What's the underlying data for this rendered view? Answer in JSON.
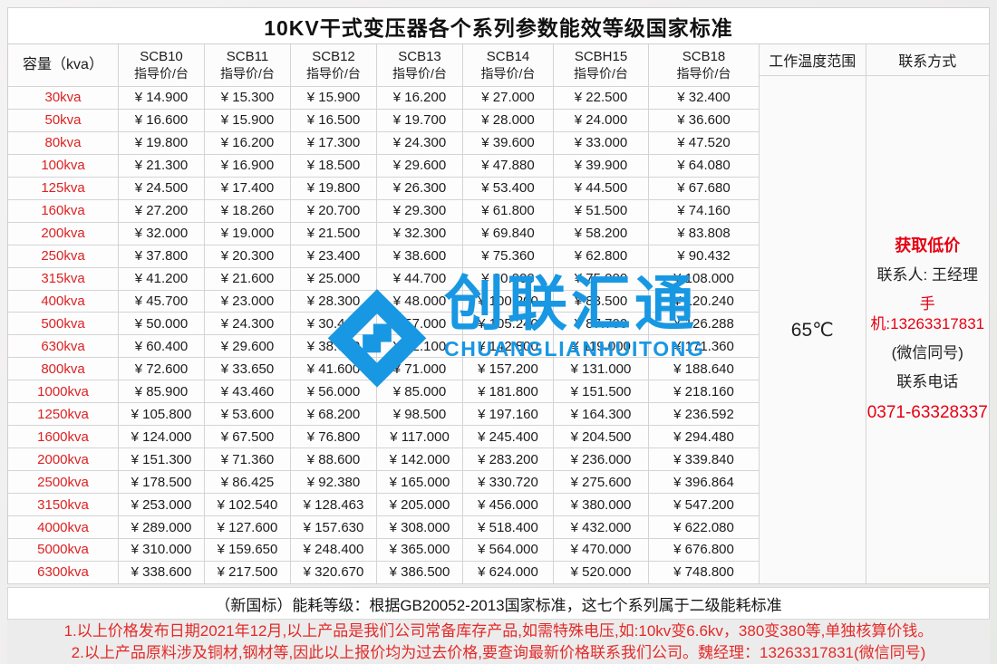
{
  "title": "10KV干式变压器各个系列参数能效等级国家标准",
  "table": {
    "capacity_header": "容量（kva）",
    "price_label": "指导价/台",
    "series": [
      "SCB10",
      "SCB11",
      "SCB12",
      "SCB13",
      "SCB14",
      "SCBH15",
      "SCB18"
    ],
    "rows": [
      {
        "capacity": "30kva",
        "prices": [
          "¥ 14.900",
          "¥ 15.300",
          "¥ 15.900",
          "¥ 16.200",
          "¥ 27.000",
          "¥ 22.500",
          "¥ 32.400"
        ]
      },
      {
        "capacity": "50kva",
        "prices": [
          "¥ 16.600",
          "¥ 15.900",
          "¥ 16.500",
          "¥ 19.700",
          "¥ 28.000",
          "¥ 24.000",
          "¥ 36.600"
        ]
      },
      {
        "capacity": "80kva",
        "prices": [
          "¥ 19.800",
          "¥ 16.200",
          "¥ 17.300",
          "¥ 24.300",
          "¥ 39.600",
          "¥ 33.000",
          "¥ 47.520"
        ]
      },
      {
        "capacity": "100kva",
        "prices": [
          "¥ 21.300",
          "¥ 16.900",
          "¥ 18.500",
          "¥ 29.600",
          "¥ 47.880",
          "¥ 39.900",
          "¥ 64.080"
        ]
      },
      {
        "capacity": "125kva",
        "prices": [
          "¥ 24.500",
          "¥ 17.400",
          "¥ 19.800",
          "¥ 26.300",
          "¥ 53.400",
          "¥ 44.500",
          "¥ 67.680"
        ]
      },
      {
        "capacity": "160kva",
        "prices": [
          "¥ 27.200",
          "¥ 18.260",
          "¥ 20.700",
          "¥ 29.300",
          "¥ 61.800",
          "¥ 51.500",
          "¥ 74.160"
        ]
      },
      {
        "capacity": "200kva",
        "prices": [
          "¥ 32.000",
          "¥ 19.000",
          "¥ 21.500",
          "¥ 32.300",
          "¥ 69.840",
          "¥ 58.200",
          "¥ 83.808"
        ]
      },
      {
        "capacity": "250kva",
        "prices": [
          "¥ 37.800",
          "¥ 20.300",
          "¥ 23.400",
          "¥ 38.600",
          "¥ 75.360",
          "¥ 62.800",
          "¥ 90.432"
        ]
      },
      {
        "capacity": "315kva",
        "prices": [
          "¥ 41.200",
          "¥ 21.600",
          "¥ 25.000",
          "¥ 44.700",
          "¥ 90.000",
          "¥ 75.000",
          "¥ 108.000"
        ]
      },
      {
        "capacity": "400kva",
        "prices": [
          "¥ 45.700",
          "¥ 23.000",
          "¥ 28.300",
          "¥ 48.000",
          "¥ 100.200",
          "¥ 83.500",
          "¥ 120.240"
        ]
      },
      {
        "capacity": "500kva",
        "prices": [
          "¥ 50.000",
          "¥ 24.300",
          "¥ 30.400",
          "¥ 57.000",
          "¥ 105.240",
          "¥ 87.700",
          "¥ 126.288"
        ]
      },
      {
        "capacity": "630kva",
        "prices": [
          "¥ 60.400",
          "¥ 29.600",
          "¥ 38.630",
          "¥ 62.100",
          "¥ 142.800",
          "¥ 119.000",
          "¥ 171.360"
        ]
      },
      {
        "capacity": "800kva",
        "prices": [
          "¥ 72.600",
          "¥ 33.650",
          "¥ 41.600",
          "¥ 71.000",
          "¥ 157.200",
          "¥ 131.000",
          "¥ 188.640"
        ]
      },
      {
        "capacity": "1000kva",
        "prices": [
          "¥ 85.900",
          "¥ 43.460",
          "¥ 56.000",
          "¥ 85.000",
          "¥ 181.800",
          "¥ 151.500",
          "¥ 218.160"
        ]
      },
      {
        "capacity": "1250kva",
        "prices": [
          "¥ 105.800",
          "¥ 53.600",
          "¥ 68.200",
          "¥ 98.500",
          "¥ 197.160",
          "¥ 164.300",
          "¥ 236.592"
        ]
      },
      {
        "capacity": "1600kva",
        "prices": [
          "¥ 124.000",
          "¥ 67.500",
          "¥ 76.800",
          "¥ 117.000",
          "¥ 245.400",
          "¥ 204.500",
          "¥ 294.480"
        ]
      },
      {
        "capacity": "2000kva",
        "prices": [
          "¥ 151.300",
          "¥ 71.360",
          "¥ 88.600",
          "¥ 142.000",
          "¥ 283.200",
          "¥ 236.000",
          "¥ 339.840"
        ]
      },
      {
        "capacity": "2500kva",
        "prices": [
          "¥ 178.500",
          "¥ 86.425",
          "¥ 92.380",
          "¥ 165.000",
          "¥ 330.720",
          "¥ 275.600",
          "¥ 396.864"
        ]
      },
      {
        "capacity": "3150kva",
        "prices": [
          "¥ 253.000",
          "¥ 102.540",
          "¥ 128.463",
          "¥ 205.000",
          "¥ 456.000",
          "¥ 380.000",
          "¥ 547.200"
        ]
      },
      {
        "capacity": "4000kva",
        "prices": [
          "¥ 289.000",
          "¥ 127.600",
          "¥ 157.630",
          "¥ 308.000",
          "¥ 518.400",
          "¥ 432.000",
          "¥ 622.080"
        ]
      },
      {
        "capacity": "5000kva",
        "prices": [
          "¥ 310.000",
          "¥ 159.650",
          "¥ 248.400",
          "¥ 365.000",
          "¥ 564.000",
          "¥ 470.000",
          "¥ 676.800"
        ]
      },
      {
        "capacity": "6300kva",
        "prices": [
          "¥ 338.600",
          "¥ 217.500",
          "¥ 320.670",
          "¥ 386.500",
          "¥ 624.000",
          "¥ 520.000",
          "¥ 748.800"
        ]
      }
    ]
  },
  "temperature": {
    "header": "工作温度范围",
    "value": "65℃"
  },
  "contact": {
    "header": "联系方式",
    "lines": [
      {
        "text": "获取低价",
        "style": "red-bold"
      },
      {
        "text": "联系人: 王经理",
        "style": "dark"
      },
      {
        "text": "手机:13263317831",
        "style": "red"
      },
      {
        "text": "(微信同号)",
        "style": "dark"
      },
      {
        "text": "联系电话",
        "style": "dark"
      },
      {
        "text": "0371-63328337",
        "style": "phone-big"
      }
    ]
  },
  "watermark": {
    "cn": "创联汇通",
    "en": "CHUANGLIANHUITONG",
    "color": "#1897e3"
  },
  "notes": {
    "standard": "（新国标）能耗等级：根据GB20052-2013国家标准，这七个系列属于二级能耗标准",
    "line1": "1.以上价格发布日期2021年12月,以上产品是我们公司常备库存产品,如需特殊电压,如:10kv变6.6kv，380变380等,单独核算价钱。",
    "line2": "2.以上产品原料涉及铜材,钢材等,因此以上报价均为过去价格,要查询最新价格联系我们公司。魏经理：13263317831(微信同号)"
  },
  "colors": {
    "accent_red": "#e60012",
    "watermark_blue": "#1897e3",
    "grid_line": "#d4d4d4"
  }
}
